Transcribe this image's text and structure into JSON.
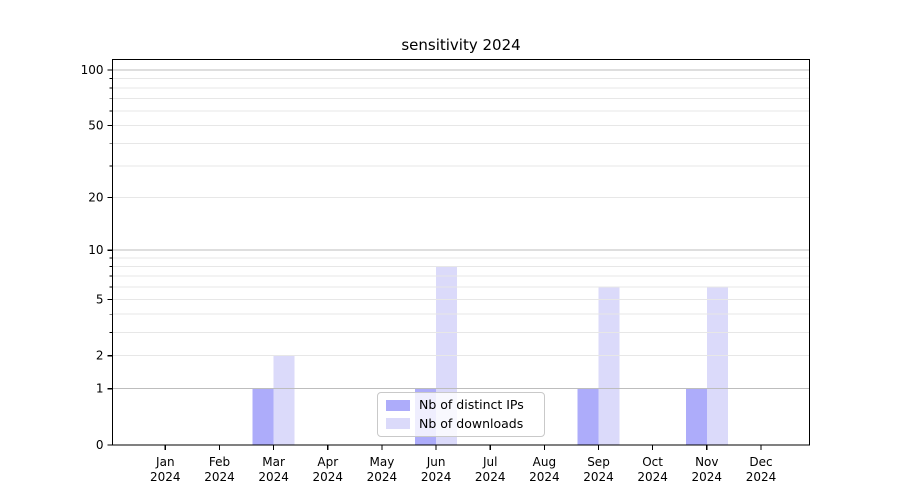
{
  "chart_data": {
    "type": "bar",
    "title": "sensitivity 2024",
    "categories": [
      "Jan",
      "Feb",
      "Mar",
      "Apr",
      "May",
      "Jun",
      "Jul",
      "Aug",
      "Sep",
      "Oct",
      "Nov",
      "Dec"
    ],
    "x_tick_year": "2024",
    "series": [
      {
        "name": "Nb of distinct IPs",
        "color": "#adacfa",
        "values": [
          0,
          0,
          1,
          0,
          0,
          1,
          0,
          0,
          1,
          0,
          1,
          0
        ]
      },
      {
        "name": "Nb of downloads",
        "color": "#dbdafa",
        "values": [
          0,
          0,
          2,
          0,
          0,
          8,
          0,
          0,
          6,
          0,
          6,
          0
        ]
      }
    ],
    "yscale": "log1p",
    "ylim": [
      0,
      114
    ],
    "yticks": [
      0,
      1,
      2,
      5,
      10,
      20,
      50,
      100
    ],
    "ytick_labels": [
      "0",
      "1",
      "2",
      "5",
      "10",
      "20",
      "50",
      "100"
    ],
    "major_grid_values": [
      1,
      10,
      100
    ],
    "minor_grid_values": [
      2,
      3,
      4,
      5,
      6,
      7,
      8,
      9,
      20,
      30,
      40,
      50,
      60,
      70,
      80,
      90
    ],
    "grid": true,
    "legend_position": "lower center"
  },
  "colors": {
    "major_grid": "#bdbdbd",
    "minor_grid": "#e7e7e7",
    "spine": "#000000",
    "tick_text": "#000000",
    "background": "#ffffff"
  }
}
